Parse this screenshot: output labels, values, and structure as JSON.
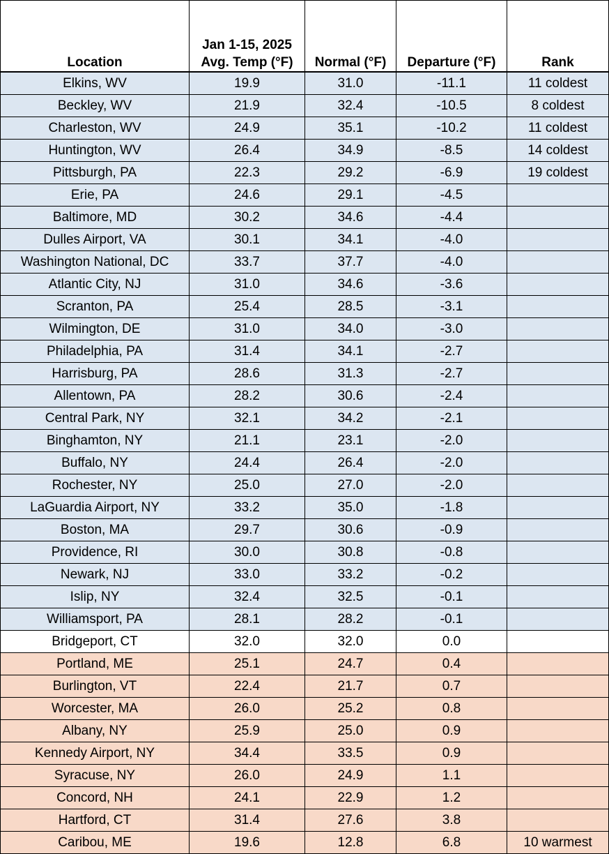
{
  "table": {
    "headers": {
      "location": "Location",
      "avg_temp": [
        "Jan 1-15, 2025",
        "Avg. Temp (°F)"
      ],
      "normal": "Normal (°F)",
      "departure": "Departure (°F)",
      "rank": "Rank"
    },
    "row_colors": {
      "cold": "#dce6f1",
      "neutral": "#ffffff",
      "warm": "#f8d9c8"
    },
    "rows": [
      {
        "location": "Elkins, WV",
        "avg": "19.9",
        "normal": "31.0",
        "departure": "-11.1",
        "rank": "11 coldest",
        "category": "cold"
      },
      {
        "location": "Beckley, WV",
        "avg": "21.9",
        "normal": "32.4",
        "departure": "-10.5",
        "rank": "8 coldest",
        "category": "cold"
      },
      {
        "location": "Charleston, WV",
        "avg": "24.9",
        "normal": "35.1",
        "departure": "-10.2",
        "rank": "11 coldest",
        "category": "cold"
      },
      {
        "location": "Huntington, WV",
        "avg": "26.4",
        "normal": "34.9",
        "departure": "-8.5",
        "rank": "14 coldest",
        "category": "cold"
      },
      {
        "location": "Pittsburgh, PA",
        "avg": "22.3",
        "normal": "29.2",
        "departure": "-6.9",
        "rank": "19 coldest",
        "category": "cold"
      },
      {
        "location": "Erie, PA",
        "avg": "24.6",
        "normal": "29.1",
        "departure": "-4.5",
        "rank": "",
        "category": "cold"
      },
      {
        "location": "Baltimore, MD",
        "avg": "30.2",
        "normal": "34.6",
        "departure": "-4.4",
        "rank": "",
        "category": "cold"
      },
      {
        "location": "Dulles Airport, VA",
        "avg": "30.1",
        "normal": "34.1",
        "departure": "-4.0",
        "rank": "",
        "category": "cold"
      },
      {
        "location": "Washington National, DC",
        "avg": "33.7",
        "normal": "37.7",
        "departure": "-4.0",
        "rank": "",
        "category": "cold"
      },
      {
        "location": "Atlantic City, NJ",
        "avg": "31.0",
        "normal": "34.6",
        "departure": "-3.6",
        "rank": "",
        "category": "cold"
      },
      {
        "location": "Scranton, PA",
        "avg": "25.4",
        "normal": "28.5",
        "departure": "-3.1",
        "rank": "",
        "category": "cold"
      },
      {
        "location": "Wilmington, DE",
        "avg": "31.0",
        "normal": "34.0",
        "departure": "-3.0",
        "rank": "",
        "category": "cold"
      },
      {
        "location": "Philadelphia, PA",
        "avg": "31.4",
        "normal": "34.1",
        "departure": "-2.7",
        "rank": "",
        "category": "cold"
      },
      {
        "location": "Harrisburg, PA",
        "avg": "28.6",
        "normal": "31.3",
        "departure": "-2.7",
        "rank": "",
        "category": "cold"
      },
      {
        "location": "Allentown, PA",
        "avg": "28.2",
        "normal": "30.6",
        "departure": "-2.4",
        "rank": "",
        "category": "cold"
      },
      {
        "location": "Central Park, NY",
        "avg": "32.1",
        "normal": "34.2",
        "departure": "-2.1",
        "rank": "",
        "category": "cold"
      },
      {
        "location": "Binghamton, NY",
        "avg": "21.1",
        "normal": "23.1",
        "departure": "-2.0",
        "rank": "",
        "category": "cold"
      },
      {
        "location": "Buffalo, NY",
        "avg": "24.4",
        "normal": "26.4",
        "departure": "-2.0",
        "rank": "",
        "category": "cold"
      },
      {
        "location": "Rochester, NY",
        "avg": "25.0",
        "normal": "27.0",
        "departure": "-2.0",
        "rank": "",
        "category": "cold"
      },
      {
        "location": "LaGuardia Airport, NY",
        "avg": "33.2",
        "normal": "35.0",
        "departure": "-1.8",
        "rank": "",
        "category": "cold"
      },
      {
        "location": "Boston, MA",
        "avg": "29.7",
        "normal": "30.6",
        "departure": "-0.9",
        "rank": "",
        "category": "cold"
      },
      {
        "location": "Providence, RI",
        "avg": "30.0",
        "normal": "30.8",
        "departure": "-0.8",
        "rank": "",
        "category": "cold"
      },
      {
        "location": "Newark, NJ",
        "avg": "33.0",
        "normal": "33.2",
        "departure": "-0.2",
        "rank": "",
        "category": "cold"
      },
      {
        "location": "Islip, NY",
        "avg": "32.4",
        "normal": "32.5",
        "departure": "-0.1",
        "rank": "",
        "category": "cold"
      },
      {
        "location": "Williamsport, PA",
        "avg": "28.1",
        "normal": "28.2",
        "departure": "-0.1",
        "rank": "",
        "category": "cold"
      },
      {
        "location": "Bridgeport, CT",
        "avg": "32.0",
        "normal": "32.0",
        "departure": "0.0",
        "rank": "",
        "category": "neutral"
      },
      {
        "location": "Portland, ME",
        "avg": "25.1",
        "normal": "24.7",
        "departure": "0.4",
        "rank": "",
        "category": "warm"
      },
      {
        "location": "Burlington, VT",
        "avg": "22.4",
        "normal": "21.7",
        "departure": "0.7",
        "rank": "",
        "category": "warm"
      },
      {
        "location": "Worcester, MA",
        "avg": "26.0",
        "normal": "25.2",
        "departure": "0.8",
        "rank": "",
        "category": "warm"
      },
      {
        "location": "Albany, NY",
        "avg": "25.9",
        "normal": "25.0",
        "departure": "0.9",
        "rank": "",
        "category": "warm"
      },
      {
        "location": "Kennedy Airport, NY",
        "avg": "34.4",
        "normal": "33.5",
        "departure": "0.9",
        "rank": "",
        "category": "warm"
      },
      {
        "location": "Syracuse, NY",
        "avg": "26.0",
        "normal": "24.9",
        "departure": "1.1",
        "rank": "",
        "category": "warm"
      },
      {
        "location": "Concord, NH",
        "avg": "24.1",
        "normal": "22.9",
        "departure": "1.2",
        "rank": "",
        "category": "warm"
      },
      {
        "location": "Hartford, CT",
        "avg": "31.4",
        "normal": "27.6",
        "departure": "3.8",
        "rank": "",
        "category": "warm"
      },
      {
        "location": "Caribou, ME",
        "avg": "19.6",
        "normal": "12.8",
        "departure": "6.8",
        "rank": "10 warmest",
        "category": "warm"
      }
    ]
  }
}
